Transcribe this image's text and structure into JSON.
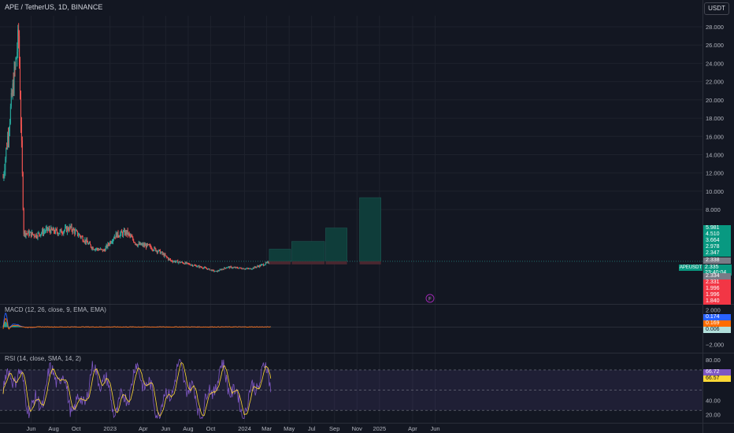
{
  "header": {
    "title": "APE / TetherUS, 1D, BINANCE",
    "currency": "USDT"
  },
  "colors": {
    "background": "#131722",
    "up": "#26a69a",
    "down": "#ef5350",
    "grid": "#1e222d",
    "text": "#b2b5be",
    "macd_line": "#2962ff",
    "signal_line": "#ff6d00",
    "rsi_line": "#7e57c2",
    "rsi_ma": "#fdd835",
    "position_box": "#0f3d3a",
    "stop_box": "#4a2730"
  },
  "price_scale": {
    "ticks": [
      "28.000",
      "26.000",
      "24.000",
      "22.000",
      "20.000",
      "18.000",
      "16.000",
      "14.000",
      "12.000",
      "10.000",
      "8.000"
    ],
    "badges": [
      {
        "label": "5.981",
        "color": "#089981"
      },
      {
        "label": "4.510",
        "color": "#089981"
      },
      {
        "label": "3.664",
        "color": "#089981"
      },
      {
        "label": "2.978",
        "color": "#089981"
      },
      {
        "label": "2.347",
        "color": "#089981"
      },
      {
        "label": "2.338",
        "color": "#787b86"
      },
      {
        "label": "2.334",
        "color": "#787b86"
      },
      {
        "label": "2.331",
        "color": "#f23645"
      },
      {
        "label": "1.996",
        "color": "#f23645"
      },
      {
        "label": "1.996",
        "color": "#f23645"
      },
      {
        "label": "1.840",
        "color": "#f23645"
      }
    ],
    "last_price": {
      "symbol": "APEUSDT",
      "value": "2.335",
      "countdown": "23:40:04"
    }
  },
  "macd": {
    "title": "MACD (12, 26, close, 9, EMA, EMA)",
    "ticks": [
      "2.000",
      "−2.000"
    ],
    "badges": [
      {
        "label": "0.174",
        "color": "#2962ff"
      },
      {
        "label": "0.169",
        "color": "#ff6d00"
      },
      {
        "label": "0.006",
        "color": "#b2dfdb",
        "text": "#131722"
      }
    ]
  },
  "rsi": {
    "title": "RSI (14, close, SMA, 14, 2)",
    "ticks": [
      "80.00",
      "40.00",
      "20.00"
    ],
    "badges": [
      {
        "label": "66.72",
        "color": "#7e57c2"
      },
      {
        "label": "66.57",
        "color": "#fdd835",
        "text": "#131722"
      }
    ]
  },
  "x_axis": {
    "labels": [
      "Jun",
      "Aug",
      "Oct",
      "2023",
      "Apr",
      "Jun",
      "Aug",
      "Oct",
      "2024",
      "Mar",
      "May",
      "Jul",
      "Sep",
      "Nov",
      "2025",
      "Apr",
      "Jun"
    ]
  },
  "chart_data": {
    "type": "line",
    "title": "APE / TetherUS, 1D, BINANCE",
    "x_start": "2022-03-17",
    "x": [
      "2022-03",
      "2022-04",
      "2022-05",
      "2022-06",
      "2022-07",
      "2022-08",
      "2022-09",
      "2022-10",
      "2022-11",
      "2022-12",
      "2023-01",
      "2023-02",
      "2023-03",
      "2023-04",
      "2023-05",
      "2023-06",
      "2023-07",
      "2023-08",
      "2023-09",
      "2023-10",
      "2023-11",
      "2023-12",
      "2024-01",
      "2024-02",
      "2024-03"
    ],
    "close": [
      11.5,
      27.0,
      5.5,
      5.2,
      5.8,
      5.5,
      6.0,
      5.0,
      3.8,
      3.5,
      5.2,
      5.5,
      4.2,
      4.0,
      3.4,
      2.4,
      2.2,
      1.9,
      1.6,
      1.2,
      1.7,
      1.6,
      1.5,
      1.9,
      2.33
    ],
    "ylim": [
      0,
      29
    ],
    "yticks": [
      8,
      10,
      12,
      14,
      16,
      18,
      20,
      22,
      24,
      26,
      28
    ],
    "last": 2.335,
    "position_targets": [
      {
        "from": "2024-03",
        "to": "2024-05",
        "top": 3.664
      },
      {
        "from": "2024-05",
        "to": "2024-08",
        "top": 4.51
      },
      {
        "from": "2024-08",
        "to": "2024-10",
        "top": 5.981
      },
      {
        "from": "2024-11",
        "to": "2025-01",
        "top": 9.3
      }
    ],
    "stop": 1.996,
    "macd": {
      "ylim": [
        -2.7,
        2.3
      ],
      "last_macd": 0.174,
      "last_signal": 0.169,
      "last_hist": 0.006
    },
    "rsi": {
      "ylim": [
        20,
        84
      ],
      "upper": 70,
      "lower": 30,
      "last_rsi": 66.72,
      "last_ma": 66.57
    }
  }
}
